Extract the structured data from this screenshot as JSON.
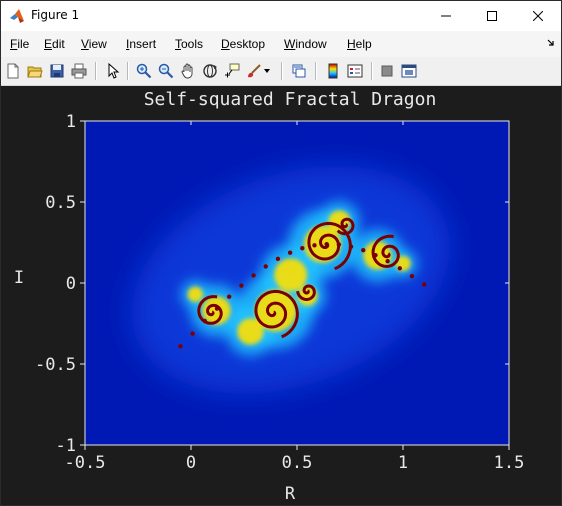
{
  "window": {
    "title": "Figure 1",
    "controls": {
      "minimize": "minimize",
      "maximize": "maximize",
      "close": "close"
    }
  },
  "menu": {
    "items": [
      {
        "label": "File",
        "acc": "F",
        "rest": "ile"
      },
      {
        "label": "Edit",
        "acc": "E",
        "rest": "dit"
      },
      {
        "label": "View",
        "acc": "V",
        "rest": "iew"
      },
      {
        "label": "Insert",
        "acc": "I",
        "rest": "nsert"
      },
      {
        "label": "Tools",
        "acc": "T",
        "rest": "ools"
      },
      {
        "label": "Desktop",
        "acc": "D",
        "rest": "esktop"
      },
      {
        "label": "Window",
        "acc": "W",
        "rest": "indow"
      },
      {
        "label": "Help",
        "acc": "H",
        "rest": "elp"
      }
    ]
  },
  "toolbar": {
    "icons": [
      "new-figure-icon",
      "open-file-icon",
      "save-icon",
      "print-icon",
      "edit-plot-arrow-icon",
      "zoom-in-icon",
      "zoom-out-icon",
      "pan-hand-icon",
      "rotate-3d-icon",
      "data-cursor-icon",
      "brush-icon",
      "link-plot-icon",
      "colorbar-icon",
      "legend-icon",
      "hide-plot-tools-icon",
      "show-plot-tools-icon"
    ]
  },
  "colors": {
    "figure_bg": "#1c1c1c",
    "plot_bg": "#0019b4",
    "axis_text": "#e8e8e8",
    "fractal_core": "#7a0000",
    "fractal_mid": "#ffe000",
    "fractal_edge": "#22c8ff"
  },
  "chart_data": {
    "type": "heatmap",
    "title": "Self-squared Fractal Dragon",
    "xlabel": "R",
    "ylabel": "I",
    "xlim": [
      -0.5,
      1.5
    ],
    "ylim": [
      -1,
      1
    ],
    "xticks": [
      "-0.5",
      "0",
      "0.5",
      "1",
      "1.5"
    ],
    "yticks": [
      "1",
      "0.5",
      "0",
      "-0.5",
      "-1"
    ],
    "grid": false,
    "colormap": "jet"
  }
}
